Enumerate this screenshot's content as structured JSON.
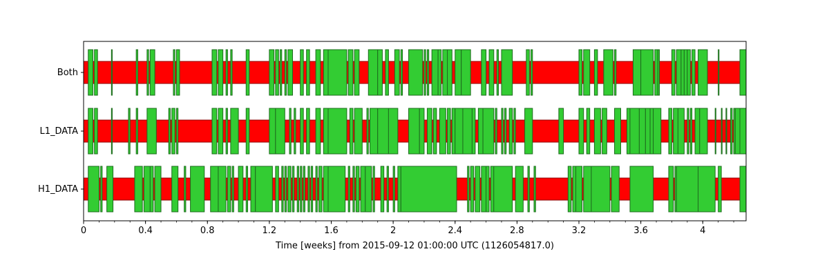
{
  "chart_data": {
    "type": "segments",
    "xlabel": "Time [weeks] from 2015-09-12 01:00:00 UTC (1126054817.0)",
    "xlim": [
      0,
      4.28
    ],
    "x_major_ticks": [
      0,
      0.4,
      0.8,
      1.2,
      1.6,
      2,
      2.4,
      2.8,
      3.2,
      3.6,
      4
    ],
    "x_major_tick_labels": [
      "0",
      "0.4",
      "0.8",
      "1.2",
      "1.6",
      "2",
      "2.4",
      "2.8",
      "3.2",
      "3.6",
      "4"
    ],
    "x_minor_step": 0.1,
    "colors": {
      "known": "#ff0000",
      "known_edge": "#8b0000",
      "active": "#33cc33",
      "active_edge": "#1e6b1e"
    },
    "rows": [
      {
        "name": "Both",
        "known": [
          [
            0,
            4.28
          ]
        ],
        "active": [
          [
            0.03,
            0.06
          ],
          [
            0.07,
            0.09
          ],
          [
            0.18,
            0.185
          ],
          [
            0.34,
            0.35
          ],
          [
            0.41,
            0.42
          ],
          [
            0.43,
            0.46
          ],
          [
            0.58,
            0.59
          ],
          [
            0.6,
            0.62
          ],
          [
            0.83,
            0.86
          ],
          [
            0.87,
            0.9
          ],
          [
            0.92,
            0.93
          ],
          [
            0.95,
            0.96
          ],
          [
            1.05,
            1.07
          ],
          [
            1.2,
            1.23
          ],
          [
            1.24,
            1.26
          ],
          [
            1.27,
            1.28
          ],
          [
            1.3,
            1.31
          ],
          [
            1.32,
            1.35
          ],
          [
            1.4,
            1.42
          ],
          [
            1.44,
            1.46
          ],
          [
            1.5,
            1.53
          ],
          [
            1.55,
            1.58
          ],
          [
            1.58,
            1.7
          ],
          [
            1.71,
            1.74
          ],
          [
            1.75,
            1.78
          ],
          [
            1.84,
            1.9
          ],
          [
            1.9,
            1.93
          ],
          [
            1.95,
            1.97
          ],
          [
            2.01,
            2.04
          ],
          [
            2.05,
            2.06
          ],
          [
            2.1,
            2.19
          ],
          [
            2.2,
            2.21
          ],
          [
            2.22,
            2.23
          ],
          [
            2.25,
            2.29
          ],
          [
            2.29,
            2.31
          ],
          [
            2.32,
            2.35
          ],
          [
            2.35,
            2.38
          ],
          [
            2.4,
            2.44
          ],
          [
            2.44,
            2.5
          ],
          [
            2.57,
            2.6
          ],
          [
            2.62,
            2.65
          ],
          [
            2.67,
            2.68
          ],
          [
            2.7,
            2.77
          ],
          [
            2.86,
            2.88
          ],
          [
            2.89,
            2.9
          ],
          [
            3.2,
            3.22
          ],
          [
            3.23,
            3.27
          ],
          [
            3.3,
            3.32
          ],
          [
            3.36,
            3.42
          ],
          [
            3.43,
            3.44
          ],
          [
            3.55,
            3.6
          ],
          [
            3.6,
            3.68
          ],
          [
            3.69,
            3.71
          ],
          [
            3.71,
            3.72
          ],
          [
            3.8,
            3.82
          ],
          [
            3.83,
            3.86
          ],
          [
            3.86,
            3.88
          ],
          [
            3.88,
            3.9
          ],
          [
            3.9,
            3.92
          ],
          [
            3.93,
            3.95
          ],
          [
            3.97,
            4.03
          ],
          [
            4.1,
            4.105
          ],
          [
            4.24,
            4.28
          ]
        ]
      },
      {
        "name": "L1_DATA",
        "known": [
          [
            0,
            4.28
          ]
        ],
        "active": [
          [
            0.03,
            0.06
          ],
          [
            0.07,
            0.09
          ],
          [
            0.18,
            0.185
          ],
          [
            0.29,
            0.3
          ],
          [
            0.34,
            0.35
          ],
          [
            0.41,
            0.47
          ],
          [
            0.55,
            0.56
          ],
          [
            0.57,
            0.59
          ],
          [
            0.6,
            0.61
          ],
          [
            0.83,
            0.86
          ],
          [
            0.87,
            0.9
          ],
          [
            0.92,
            0.93
          ],
          [
            0.95,
            1.0
          ],
          [
            1.05,
            1.07
          ],
          [
            1.2,
            1.24
          ],
          [
            1.24,
            1.3
          ],
          [
            1.33,
            1.34
          ],
          [
            1.36,
            1.37
          ],
          [
            1.4,
            1.42
          ],
          [
            1.44,
            1.46
          ],
          [
            1.5,
            1.53
          ],
          [
            1.55,
            1.58
          ],
          [
            1.58,
            1.7
          ],
          [
            1.72,
            1.74
          ],
          [
            1.75,
            1.8
          ],
          [
            1.83,
            1.84
          ],
          [
            1.85,
            1.9
          ],
          [
            1.9,
            1.97
          ],
          [
            1.97,
            2.03
          ],
          [
            2.1,
            2.17
          ],
          [
            2.17,
            2.2
          ],
          [
            2.22,
            2.25
          ],
          [
            2.26,
            2.28
          ],
          [
            2.3,
            2.34
          ],
          [
            2.35,
            2.37
          ],
          [
            2.38,
            2.4
          ],
          [
            2.4,
            2.45
          ],
          [
            2.45,
            2.51
          ],
          [
            2.51,
            2.53
          ],
          [
            2.55,
            2.58
          ],
          [
            2.58,
            2.65
          ],
          [
            2.66,
            2.67
          ],
          [
            2.7,
            2.71
          ],
          [
            2.72,
            2.73
          ],
          [
            2.75,
            2.77
          ],
          [
            2.78,
            2.79
          ],
          [
            2.85,
            2.9
          ],
          [
            3.07,
            3.1
          ],
          [
            3.2,
            3.23
          ],
          [
            3.25,
            3.27
          ],
          [
            3.3,
            3.34
          ],
          [
            3.35,
            3.38
          ],
          [
            3.43,
            3.47
          ],
          [
            3.51,
            3.53
          ],
          [
            3.53,
            3.59
          ],
          [
            3.59,
            3.63
          ],
          [
            3.63,
            3.66
          ],
          [
            3.66,
            3.68
          ],
          [
            3.68,
            3.73
          ],
          [
            3.78,
            3.8
          ],
          [
            3.81,
            3.84
          ],
          [
            3.84,
            3.88
          ],
          [
            3.9,
            3.91
          ],
          [
            3.92,
            3.93
          ],
          [
            3.95,
            3.98
          ],
          [
            3.98,
            4.03
          ],
          [
            4.08,
            4.085
          ],
          [
            4.12,
            4.125
          ],
          [
            4.15,
            4.155
          ],
          [
            4.18,
            4.19
          ],
          [
            4.2,
            4.21
          ],
          [
            4.21,
            4.24
          ],
          [
            4.24,
            4.28
          ]
        ]
      },
      {
        "name": "H1_DATA",
        "known": [
          [
            0,
            4.28
          ]
        ],
        "active": [
          [
            0.03,
            0.1
          ],
          [
            0.11,
            0.12
          ],
          [
            0.15,
            0.19
          ],
          [
            0.33,
            0.38
          ],
          [
            0.39,
            0.43
          ],
          [
            0.43,
            0.45
          ],
          [
            0.46,
            0.5
          ],
          [
            0.57,
            0.61
          ],
          [
            0.65,
            0.66
          ],
          [
            0.69,
            0.78
          ],
          [
            0.82,
            0.87
          ],
          [
            0.87,
            0.92
          ],
          [
            0.93,
            0.95
          ],
          [
            0.96,
            0.97
          ],
          [
            1.0,
            1.03
          ],
          [
            1.05,
            1.06
          ],
          [
            1.08,
            1.11
          ],
          [
            1.11,
            1.22
          ],
          [
            1.24,
            1.26
          ],
          [
            1.28,
            1.29
          ],
          [
            1.3,
            1.31
          ],
          [
            1.32,
            1.34
          ],
          [
            1.35,
            1.36
          ],
          [
            1.38,
            1.39
          ],
          [
            1.4,
            1.41
          ],
          [
            1.42,
            1.43
          ],
          [
            1.45,
            1.46
          ],
          [
            1.47,
            1.48
          ],
          [
            1.5,
            1.51
          ],
          [
            1.52,
            1.54
          ],
          [
            1.55,
            1.58
          ],
          [
            1.58,
            1.69
          ],
          [
            1.71,
            1.72
          ],
          [
            1.74,
            1.75
          ],
          [
            1.76,
            1.78
          ],
          [
            1.79,
            1.82
          ],
          [
            1.82,
            1.86
          ],
          [
            1.87,
            1.88
          ],
          [
            1.92,
            1.94
          ],
          [
            1.96,
            1.97
          ],
          [
            2.0,
            2.01
          ],
          [
            2.03,
            2.05
          ],
          [
            2.05,
            2.41
          ],
          [
            2.48,
            2.49
          ],
          [
            2.5,
            2.52
          ],
          [
            2.53,
            2.56
          ],
          [
            2.57,
            2.6
          ],
          [
            2.6,
            2.62
          ],
          [
            2.63,
            2.65
          ],
          [
            2.65,
            2.77
          ],
          [
            2.79,
            2.84
          ],
          [
            2.87,
            2.88
          ],
          [
            2.91,
            2.92
          ],
          [
            3.13,
            3.15
          ],
          [
            3.16,
            3.18
          ],
          [
            3.18,
            3.22
          ],
          [
            3.23,
            3.28
          ],
          [
            3.28,
            3.4
          ],
          [
            3.41,
            3.46
          ],
          [
            3.53,
            3.68
          ],
          [
            3.78,
            3.81
          ],
          [
            3.82,
            3.83
          ],
          [
            3.83,
            3.97
          ],
          [
            3.97,
            4.08
          ],
          [
            4.1,
            4.12
          ],
          [
            4.24,
            4.28
          ]
        ]
      }
    ]
  }
}
